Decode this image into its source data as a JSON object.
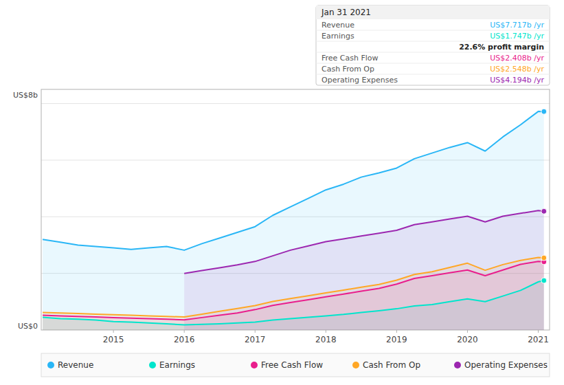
{
  "chart_data": {
    "type": "area",
    "x": [
      2014.0,
      2014.25,
      2014.5,
      2014.75,
      2015.0,
      2015.25,
      2015.5,
      2015.75,
      2016.0,
      2016.25,
      2016.5,
      2016.75,
      2017.0,
      2017.25,
      2017.5,
      2017.75,
      2018.0,
      2018.25,
      2018.5,
      2018.75,
      2019.0,
      2019.25,
      2019.5,
      2019.75,
      2020.0,
      2020.25,
      2020.5,
      2020.75,
      2021.0,
      2021.08
    ],
    "series": [
      {
        "name": "Revenue",
        "color": "#29b6f6",
        "values": [
          3.2,
          3.1,
          3.0,
          2.95,
          2.9,
          2.85,
          2.9,
          2.95,
          2.82,
          3.05,
          3.25,
          3.45,
          3.65,
          4.05,
          4.35,
          4.65,
          4.95,
          5.15,
          5.4,
          5.55,
          5.72,
          6.05,
          6.25,
          6.45,
          6.62,
          6.32,
          6.82,
          7.25,
          7.72,
          7.717
        ]
      },
      {
        "name": "Earnings",
        "color": "#00e5cc",
        "values": [
          0.45,
          0.4,
          0.38,
          0.35,
          0.3,
          0.28,
          0.25,
          0.22,
          0.18,
          0.2,
          0.22,
          0.25,
          0.28,
          0.35,
          0.4,
          0.45,
          0.5,
          0.55,
          0.62,
          0.68,
          0.75,
          0.85,
          0.9,
          1.0,
          1.1,
          1.0,
          1.2,
          1.4,
          1.7,
          1.747
        ]
      },
      {
        "name": "Free Cash Flow",
        "color": "#e91e8c",
        "values": [
          0.52,
          0.5,
          0.48,
          0.46,
          0.44,
          0.42,
          0.4,
          0.38,
          0.36,
          0.44,
          0.52,
          0.6,
          0.72,
          0.87,
          0.97,
          1.07,
          1.17,
          1.27,
          1.37,
          1.47,
          1.62,
          1.82,
          1.92,
          2.02,
          2.12,
          1.92,
          2.12,
          2.32,
          2.42,
          2.408
        ]
      },
      {
        "name": "Cash From Op",
        "color": "#ffa726",
        "values": [
          0.62,
          0.6,
          0.58,
          0.56,
          0.54,
          0.52,
          0.5,
          0.48,
          0.46,
          0.56,
          0.66,
          0.76,
          0.86,
          1.01,
          1.11,
          1.21,
          1.31,
          1.41,
          1.51,
          1.61,
          1.76,
          1.96,
          2.06,
          2.21,
          2.36,
          2.11,
          2.31,
          2.46,
          2.56,
          2.548
        ]
      },
      {
        "name": "Operating Expenses",
        "color": "#9c27b0",
        "values": [
          null,
          null,
          null,
          null,
          null,
          null,
          null,
          null,
          2.0,
          2.1,
          2.2,
          2.3,
          2.42,
          2.62,
          2.82,
          2.97,
          3.12,
          3.22,
          3.32,
          3.42,
          3.52,
          3.72,
          3.82,
          3.92,
          4.02,
          3.82,
          4.02,
          4.12,
          4.22,
          4.194
        ]
      }
    ],
    "xlim": [
      2013.98,
      2021.16
    ],
    "xticks": [
      2015,
      2016,
      2017,
      2018,
      2019,
      2020,
      2021
    ],
    "ylim": [
      0,
      8.5
    ],
    "yticks": [
      2,
      4,
      6,
      8
    ],
    "tick_labels": "x",
    "grid": true,
    "legend": "bottom",
    "annotations": [
      "US$8b",
      "US$0"
    ],
    "tooltip": {
      "title": "Jan 31 2021",
      "rows": [
        {
          "label": "Revenue",
          "value": "US$7.717b /yr",
          "color": "#29b6f6"
        },
        {
          "label": "Earnings",
          "value": "US$1.747b /yr",
          "color": "#00e5cc"
        },
        {
          "value": "22.6% profit margin"
        },
        {
          "label": "Free Cash Flow",
          "value": "US$2.408b /yr",
          "color": "#e91e8c"
        },
        {
          "label": "Cash From Op",
          "value": "US$2.548b /yr",
          "color": "#ffa726"
        },
        {
          "label": "Operating Expenses",
          "value": "US$4.194b /yr",
          "color": "#9c27b0"
        }
      ]
    }
  }
}
